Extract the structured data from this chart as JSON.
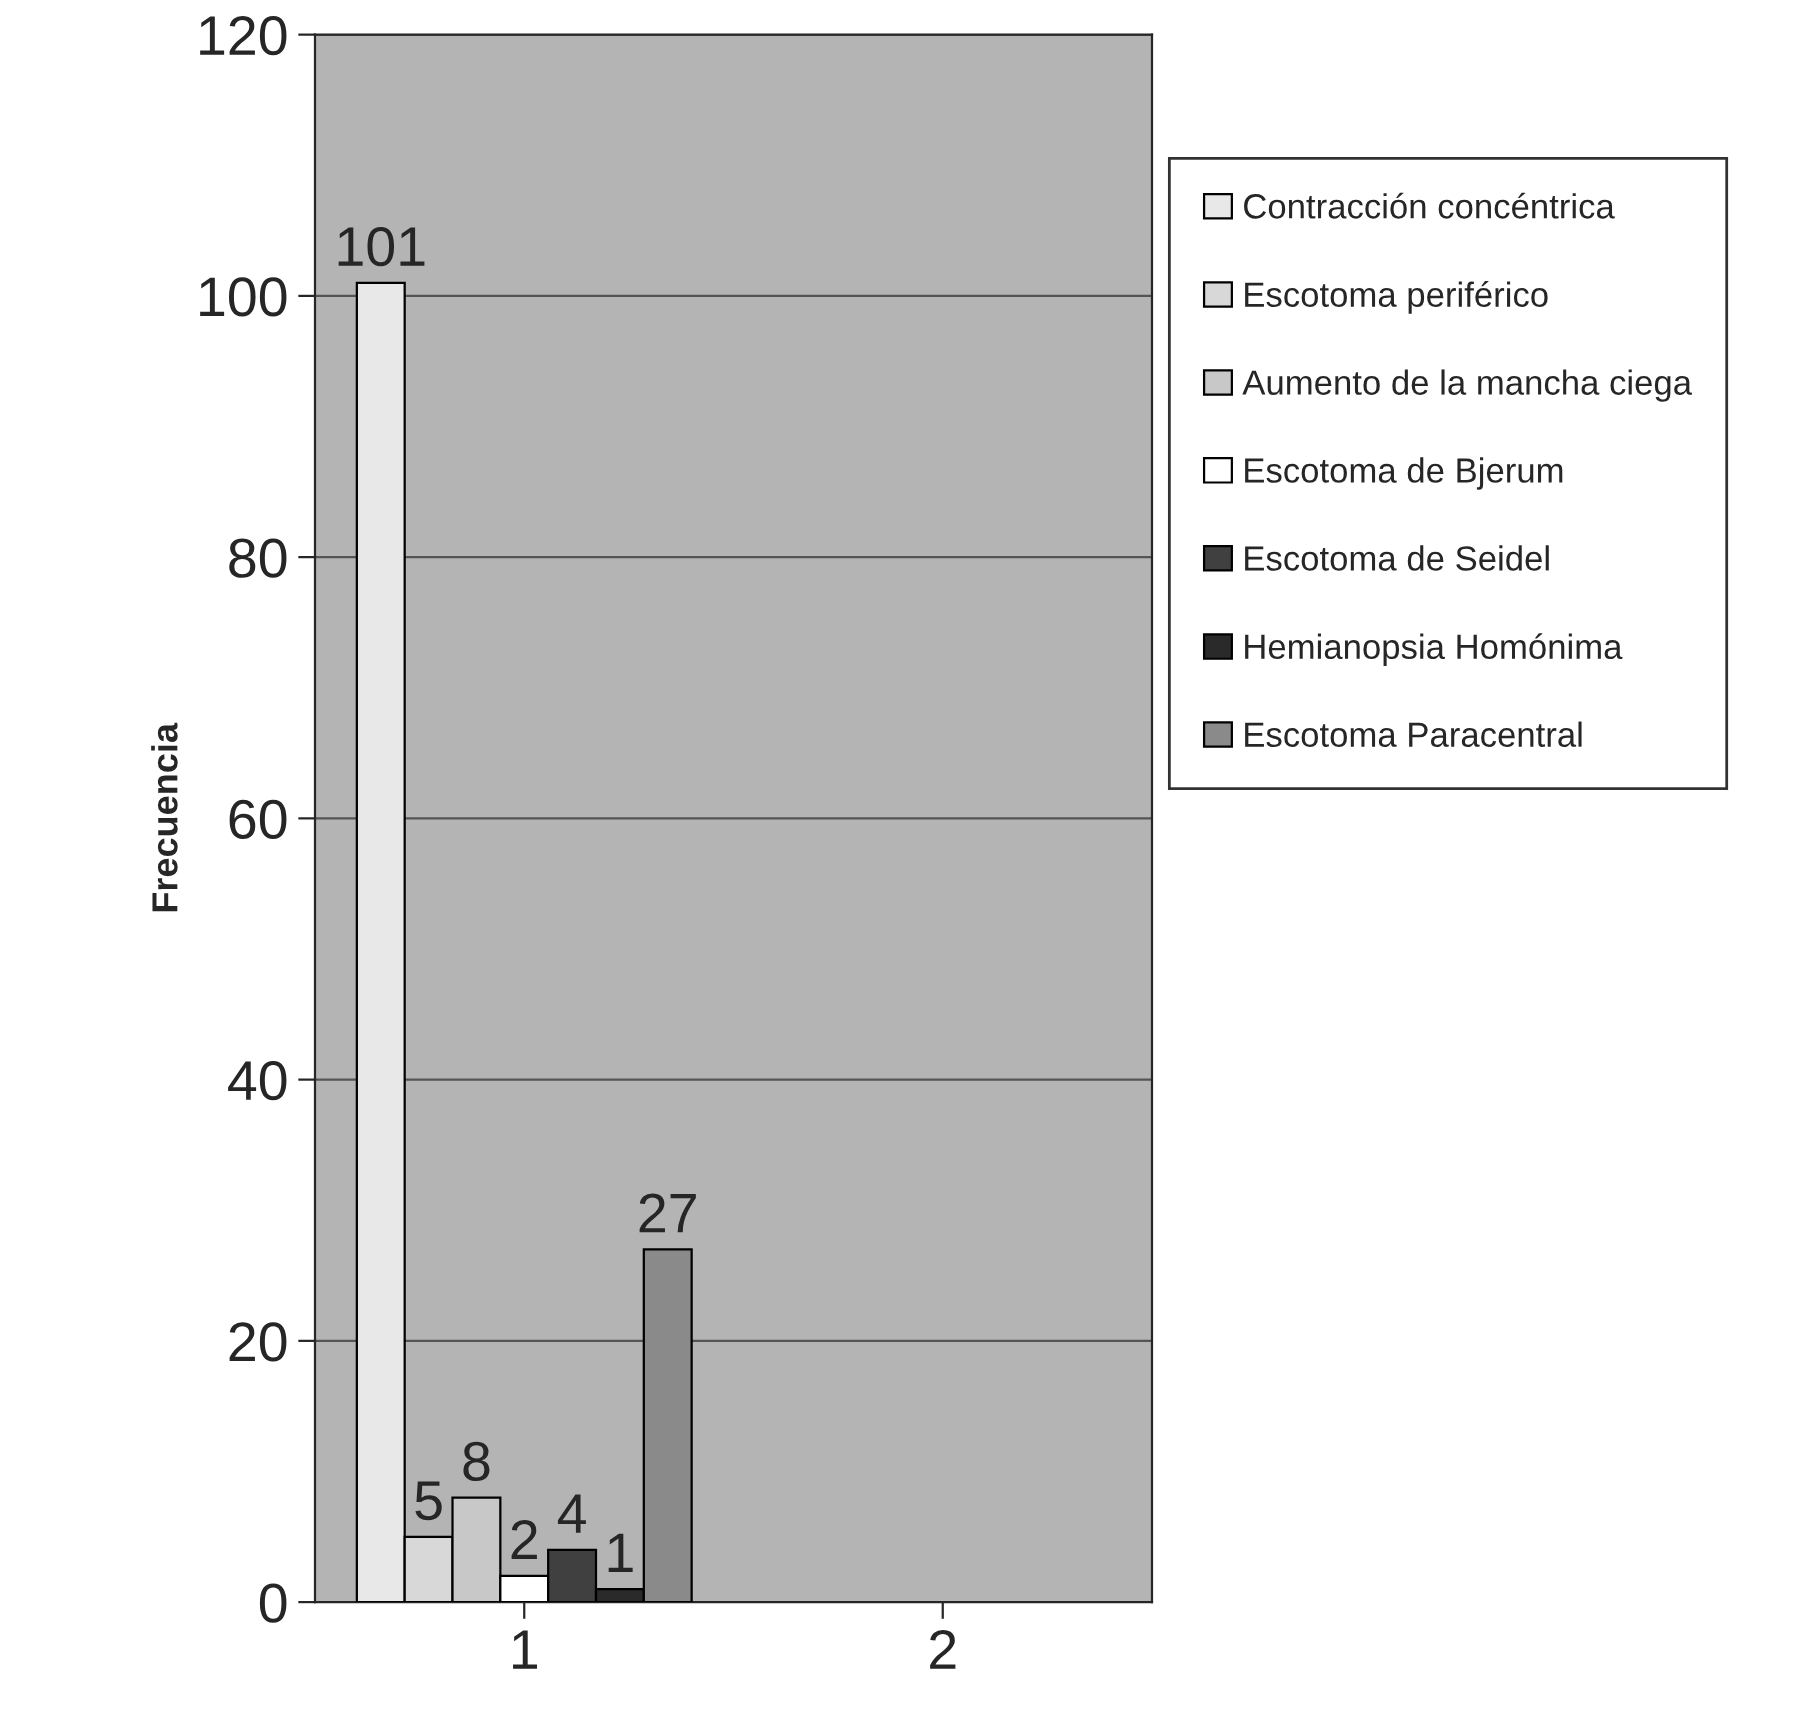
{
  "chart_data": {
    "type": "bar",
    "ylabel": "Frecuencia",
    "categories": [
      "1",
      "2"
    ],
    "series": [
      {
        "name": "Contracción concéntrica",
        "color": "#e8e8e8",
        "values": [
          101,
          null
        ]
      },
      {
        "name": "Escotoma periférico",
        "color": "#d8d8d8",
        "values": [
          5,
          null
        ]
      },
      {
        "name": "Aumento de la mancha ciega",
        "color": "#c8c8c8",
        "values": [
          8,
          null
        ]
      },
      {
        "name": "Escotoma de Bjerum",
        "color": "#ffffff",
        "values": [
          2,
          null
        ]
      },
      {
        "name": "Escotoma de Seidel",
        "color": "#404040",
        "values": [
          4,
          null
        ]
      },
      {
        "name": "Hemianopsia Homónima",
        "color": "#2a2a2a",
        "values": [
          1,
          null
        ]
      },
      {
        "name": "Escotoma Paracentral",
        "color": "#8a8a8a",
        "values": [
          27,
          null
        ]
      }
    ],
    "ylim": [
      0,
      120
    ],
    "yticks": [
      0,
      20,
      40,
      60,
      80,
      100,
      120
    ],
    "grid": "y",
    "legend": "right",
    "data_labels": true
  }
}
